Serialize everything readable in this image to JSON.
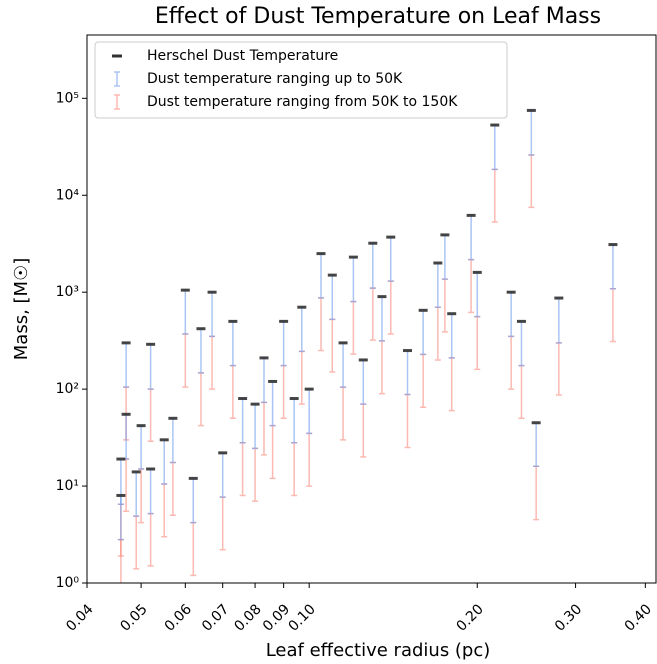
{
  "chart_data": {
    "type": "errorbar",
    "title": "Effect of Dust Temperature on Leaf Mass",
    "x_label": "Leaf effective radius (pc)",
    "y_label": "Mass, [M☉]",
    "x_scale": "log",
    "y_scale": "log",
    "legend": "upper left",
    "xlim": [
      0.04,
      0.418
    ],
    "ylim": [
      1,
      450000
    ],
    "xticks": [
      0.04,
      0.05,
      0.06,
      0.07,
      0.08,
      0.09,
      {
        "value": 0.1,
        "label": "0.10"
      },
      {
        "value": 0.2,
        "label": "0.20"
      },
      {
        "value": 0.3,
        "label": "0.30"
      },
      {
        "value": 0.4,
        "label": "0.40"
      }
    ],
    "yticks": [
      {
        "value": 1,
        "label": "10⁰"
      },
      {
        "value": 10,
        "label": "10¹"
      },
      {
        "value": 100,
        "label": "10²"
      },
      {
        "value": 1000,
        "label": "10³"
      },
      {
        "value": 10000,
        "label": "10⁴"
      },
      {
        "value": 100000,
        "label": "10⁵"
      }
    ],
    "x": [
      0.046,
      0.046,
      0.047,
      0.047,
      0.049,
      0.05,
      0.052,
      0.052,
      0.055,
      0.057,
      0.06,
      0.062,
      0.064,
      0.067,
      0.07,
      0.073,
      0.076,
      0.08,
      0.083,
      0.086,
      0.09,
      0.094,
      0.097,
      0.1,
      0.105,
      0.11,
      0.115,
      0.12,
      0.125,
      0.13,
      0.135,
      0.14,
      0.15,
      0.16,
      0.17,
      0.175,
      0.18,
      0.195,
      0.2,
      0.215,
      0.23,
      0.24,
      0.25,
      0.255,
      0.28,
      0.35
    ],
    "series": [
      {
        "name": "Herschel Dust Temperature",
        "color": "#333333",
        "values": [
          19,
          8,
          300,
          55,
          14,
          42,
          290,
          15,
          30,
          50,
          1050,
          12,
          420,
          1000,
          22,
          500,
          80,
          70,
          210,
          120,
          500,
          80,
          700,
          100,
          2500,
          1500,
          300,
          2300,
          200,
          3200,
          900,
          3700,
          250,
          650,
          2000,
          3900,
          600,
          6200,
          1600,
          53000,
          1000,
          500,
          75000,
          45,
          870,
          3100
        ]
      },
      {
        "name": "Dust temperature ranging up to 50K",
        "color": "#6495ed",
        "low": [
          6.5,
          2.8,
          105,
          19,
          4.9,
          15,
          100,
          5.2,
          10.5,
          17.5,
          370,
          4.2,
          147,
          350,
          7.7,
          175,
          28,
          24.5,
          73,
          42,
          175,
          28,
          245,
          35,
          875,
          525,
          105,
          800,
          70,
          1100,
          315,
          1300,
          88,
          228,
          700,
          1365,
          210,
          2170,
          560,
          18500,
          350,
          175,
          26000,
          16,
          300,
          1085
        ],
        "high": [
          19,
          8,
          300,
          55,
          14,
          42,
          290,
          15,
          30,
          50,
          1050,
          12,
          420,
          1000,
          22,
          500,
          80,
          70,
          210,
          120,
          500,
          80,
          700,
          100,
          2500,
          1500,
          300,
          2300,
          200,
          3200,
          900,
          3700,
          250,
          650,
          2000,
          3900,
          600,
          6200,
          1600,
          53000,
          1000,
          500,
          75000,
          45,
          870,
          3100
        ]
      },
      {
        "name": "Dust temperature ranging from 50K to 150K",
        "color": "#fa8072",
        "low": [
          1.9,
          0.8,
          30,
          5.5,
          1.4,
          4.2,
          29,
          1.5,
          3,
          5,
          105,
          1.2,
          42,
          100,
          2.2,
          50,
          8,
          7,
          21,
          12,
          50,
          8,
          70,
          10,
          250,
          150,
          30,
          230,
          20,
          320,
          90,
          370,
          25,
          65,
          200,
          390,
          60,
          620,
          160,
          5300,
          100,
          50,
          7500,
          4.5,
          87,
          310
        ],
        "high": [
          6.5,
          2.8,
          105,
          19,
          4.9,
          15,
          100,
          5.2,
          10.5,
          17.5,
          370,
          4.2,
          147,
          350,
          7.7,
          175,
          28,
          24.5,
          73,
          42,
          175,
          28,
          245,
          35,
          875,
          525,
          105,
          800,
          70,
          1100,
          315,
          1300,
          88,
          228,
          700,
          1365,
          210,
          2170,
          560,
          18500,
          350,
          175,
          26000,
          16,
          300,
          1085
        ]
      }
    ]
  }
}
